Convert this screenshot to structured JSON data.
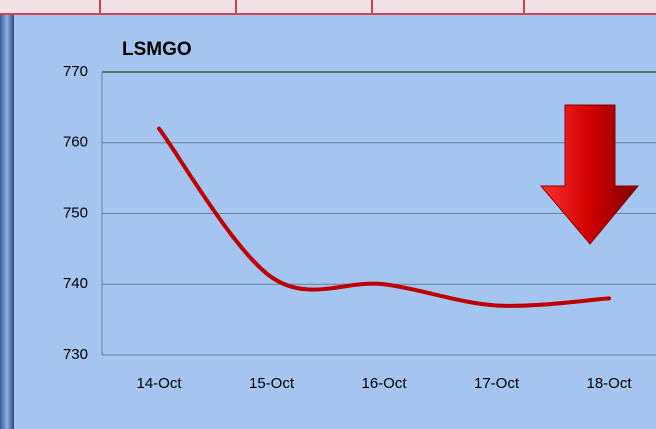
{
  "chart_data": {
    "type": "line",
    "title": "LSMGO",
    "categories": [
      "14-Oct",
      "15-Oct",
      "16-Oct",
      "17-Oct",
      "18-Oct"
    ],
    "series": [
      {
        "name": "LSMGO",
        "color": "#c00000",
        "values": [
          762,
          741,
          740,
          737,
          738
        ]
      }
    ],
    "ylim": [
      730,
      770
    ],
    "yticks": [
      730,
      740,
      750,
      760,
      770
    ],
    "grid": true
  }
}
